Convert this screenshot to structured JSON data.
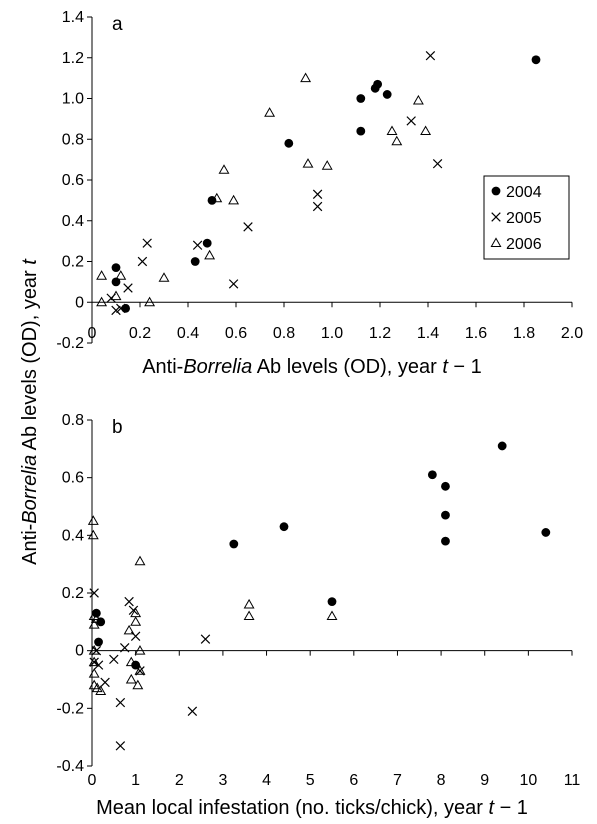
{
  "shared_ylabel": {
    "before": "Anti-",
    "italic": "Borrelia",
    "after": " Ab levels (OD), year ",
    "var": "t"
  },
  "marker_names": {
    "2004": "filled-circle",
    "2005": "cross",
    "2006": "open-triangle"
  },
  "chart_data": [
    {
      "panel": "a",
      "type": "scatter",
      "xlabel": {
        "before": "Anti-",
        "italic": "Borrelia",
        "after": " Ab levels (OD), year ",
        "var": "t",
        "suffix": " − 1"
      },
      "xlim": [
        0,
        2.0
      ],
      "ylim": [
        -0.2,
        1.4
      ],
      "xticks": [
        "0",
        "0.2",
        "0.4",
        "0.6",
        "0.8",
        "1.0",
        "1.2",
        "1.4",
        "1.6",
        "1.8",
        "2.0"
      ],
      "yticks": [
        "-0.2",
        "0",
        "0.2",
        "0.4",
        "0.6",
        "0.8",
        "1.0",
        "1.2",
        "1.4"
      ],
      "legend": {
        "placement": "right",
        "entries": [
          "2004",
          "2005",
          "2006"
        ]
      },
      "series": [
        {
          "name": "2004",
          "points": [
            [
              0.1,
              0.17
            ],
            [
              0.1,
              0.1
            ],
            [
              0.14,
              -0.03
            ],
            [
              0.43,
              0.2
            ],
            [
              0.48,
              0.29
            ],
            [
              0.5,
              0.5
            ],
            [
              0.82,
              0.78
            ],
            [
              1.12,
              1.0
            ],
            [
              1.12,
              0.84
            ],
            [
              1.18,
              1.05
            ],
            [
              1.19,
              1.07
            ],
            [
              1.23,
              1.02
            ],
            [
              1.85,
              1.19
            ]
          ]
        },
        {
          "name": "2005",
          "points": [
            [
              0.08,
              0.02
            ],
            [
              0.1,
              -0.04
            ],
            [
              0.12,
              -0.03
            ],
            [
              0.15,
              0.07
            ],
            [
              0.21,
              0.2
            ],
            [
              0.23,
              0.29
            ],
            [
              0.44,
              0.28
            ],
            [
              0.59,
              0.09
            ],
            [
              0.65,
              0.37
            ],
            [
              0.94,
              0.53
            ],
            [
              0.94,
              0.47
            ],
            [
              1.33,
              0.89
            ],
            [
              1.41,
              1.21
            ],
            [
              1.44,
              0.68
            ]
          ]
        },
        {
          "name": "2006",
          "points": [
            [
              0.04,
              0.13
            ],
            [
              0.04,
              0.0
            ],
            [
              0.1,
              0.03
            ],
            [
              0.12,
              0.13
            ],
            [
              0.24,
              0.0
            ],
            [
              0.3,
              0.12
            ],
            [
              0.49,
              0.23
            ],
            [
              0.52,
              0.51
            ],
            [
              0.55,
              0.65
            ],
            [
              0.59,
              0.5
            ],
            [
              0.74,
              0.93
            ],
            [
              0.89,
              1.1
            ],
            [
              0.9,
              0.68
            ],
            [
              0.98,
              0.67
            ],
            [
              1.25,
              0.84
            ],
            [
              1.27,
              0.79
            ],
            [
              1.36,
              0.99
            ],
            [
              1.39,
              0.84
            ]
          ]
        }
      ]
    },
    {
      "panel": "b",
      "type": "scatter",
      "xlabel": {
        "before": "Mean local infestation (no. ticks/chick), year ",
        "italic": "",
        "after": "",
        "var": "t",
        "suffix": " − 1"
      },
      "xlim": [
        0,
        11
      ],
      "ylim": [
        -0.4,
        0.8
      ],
      "xticks": [
        "0",
        "1",
        "2",
        "3",
        "4",
        "5",
        "6",
        "7",
        "8",
        "9",
        "10",
        "11"
      ],
      "yticks": [
        "-0.4",
        "-0.2",
        "0",
        "0.2",
        "0.4",
        "0.6",
        "0.8"
      ],
      "series": [
        {
          "name": "2004",
          "points": [
            [
              0.1,
              0.13
            ],
            [
              0.15,
              0.03
            ],
            [
              0.2,
              0.1
            ],
            [
              1.0,
              -0.05
            ],
            [
              3.25,
              0.37
            ],
            [
              4.4,
              0.43
            ],
            [
              5.5,
              0.17
            ],
            [
              7.8,
              0.61
            ],
            [
              8.1,
              0.57
            ],
            [
              8.1,
              0.47
            ],
            [
              8.1,
              0.38
            ],
            [
              9.4,
              0.71
            ],
            [
              10.4,
              0.41
            ]
          ]
        },
        {
          "name": "2005",
          "points": [
            [
              0.05,
              0.2
            ],
            [
              0.05,
              -0.04
            ],
            [
              0.1,
              0.0
            ],
            [
              0.15,
              -0.05
            ],
            [
              0.3,
              -0.11
            ],
            [
              0.5,
              -0.03
            ],
            [
              0.65,
              -0.18
            ],
            [
              0.65,
              -0.33
            ],
            [
              0.75,
              0.01
            ],
            [
              0.85,
              0.17
            ],
            [
              0.95,
              0.14
            ],
            [
              1.0,
              0.05
            ],
            [
              1.1,
              -0.07
            ],
            [
              2.3,
              -0.21
            ],
            [
              2.6,
              0.04
            ]
          ]
        },
        {
          "name": "2006",
          "points": [
            [
              0.03,
              0.45
            ],
            [
              0.03,
              0.4
            ],
            [
              0.05,
              0.12
            ],
            [
              0.05,
              0.09
            ],
            [
              0.05,
              0.0
            ],
            [
              0.05,
              -0.04
            ],
            [
              0.05,
              -0.08
            ],
            [
              0.05,
              -0.12
            ],
            [
              0.1,
              0.11
            ],
            [
              0.12,
              -0.13
            ],
            [
              0.2,
              -0.14
            ],
            [
              0.85,
              0.07
            ],
            [
              0.9,
              -0.04
            ],
            [
              0.9,
              -0.1
            ],
            [
              1.0,
              0.13
            ],
            [
              1.0,
              0.1
            ],
            [
              1.05,
              -0.12
            ],
            [
              1.1,
              -0.07
            ],
            [
              1.1,
              0.0
            ],
            [
              1.1,
              0.31
            ],
            [
              3.6,
              0.16
            ],
            [
              3.6,
              0.12
            ],
            [
              5.5,
              0.12
            ]
          ]
        }
      ]
    }
  ]
}
